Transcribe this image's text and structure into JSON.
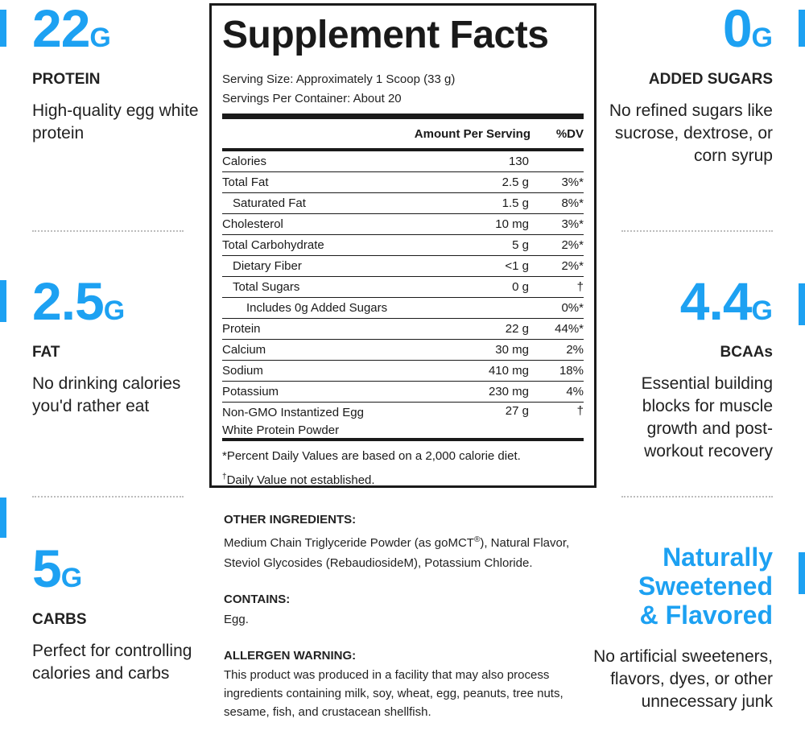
{
  "stats": {
    "protein": {
      "value": "22",
      "unit": "G",
      "label": "PROTEIN",
      "desc": "High-quality egg white protein"
    },
    "fat": {
      "value": "2.5",
      "unit": "G",
      "label": "FAT",
      "desc": "No drinking calories you'd rather eat"
    },
    "carbs": {
      "value": "5",
      "unit": "G",
      "label": "CARBS",
      "desc": "Perfect for controlling calories and carbs"
    },
    "sugars": {
      "value": "0",
      "unit": "G",
      "label": "ADDED SUGARS",
      "desc": "No refined sugars like sucrose, dextrose, or corn syrup"
    },
    "bcaa": {
      "value": "4.4",
      "unit": "G",
      "label": "BCAAs",
      "desc": "Essential building blocks for muscle growth and post-workout recovery"
    }
  },
  "sweetened": {
    "headline_1": "Naturally",
    "headline_2": "Sweetened",
    "headline_3": "& Flavored",
    "desc": "No artificial sweeteners, flavors, dyes, or other unnecessary junk"
  },
  "facts": {
    "title": "Supplement Facts",
    "serving_size": "Serving Size: Approximately 1 Scoop (33 g)",
    "servings_per_container": "Servings Per Container: About 20",
    "header_amount": "Amount Per Serving",
    "header_dv": "%DV",
    "rows": [
      {
        "name": "Calories",
        "amount": "130",
        "dv": ""
      },
      {
        "name": "Total Fat",
        "amount": "2.5 g",
        "dv": "3%*"
      },
      {
        "name": "Saturated Fat",
        "amount": "1.5 g",
        "dv": "8%*"
      },
      {
        "name": "Cholesterol",
        "amount": "10 mg",
        "dv": "3%*"
      },
      {
        "name": "Total Carbohydrate",
        "amount": "5 g",
        "dv": "2%*"
      },
      {
        "name": "Dietary Fiber",
        "amount": "<1 g",
        "dv": "2%*"
      },
      {
        "name": "Total Sugars",
        "amount": "0 g",
        "dv": "†"
      },
      {
        "name": "Includes 0g Added Sugars",
        "amount": "",
        "dv": "0%*"
      },
      {
        "name": "Protein",
        "amount": "22 g",
        "dv": "44%*"
      },
      {
        "name": "Calcium",
        "amount": "30 mg",
        "dv": "2%"
      },
      {
        "name": "Sodium",
        "amount": "410 mg",
        "dv": "18%"
      },
      {
        "name": "Potassium",
        "amount": "230 mg",
        "dv": "4%"
      },
      {
        "name": "Non-GMO Instantized Egg White Protein Powder",
        "amount": "27 g",
        "dv": "†"
      }
    ],
    "footnote_1": "*Percent Daily Values are based on a 2,000 calorie diet.",
    "footnote_2_mark": "†",
    "footnote_2": "Daily Value not established."
  },
  "ingredients": {
    "other_heading": "OTHER INGREDIENTS:",
    "other_text_1": "Medium Chain Triglyceride Powder (as goMCT",
    "other_reg": "®",
    "other_text_2": "), Natural Flavor, Steviol Glycosides (RebaudiosideM), Potassium Chloride.",
    "contains_heading": "CONTAINS:",
    "contains_text": "Egg.",
    "allergen_heading": "ALLERGEN WARNING:",
    "allergen_text": "This product was produced in a facility that may also process ingredients containing milk, soy, wheat, egg, peanuts, tree nuts, sesame, fish, and crustacean shellfish."
  },
  "colors": {
    "accent": "#1da1f2",
    "text": "#1a1a1a"
  }
}
